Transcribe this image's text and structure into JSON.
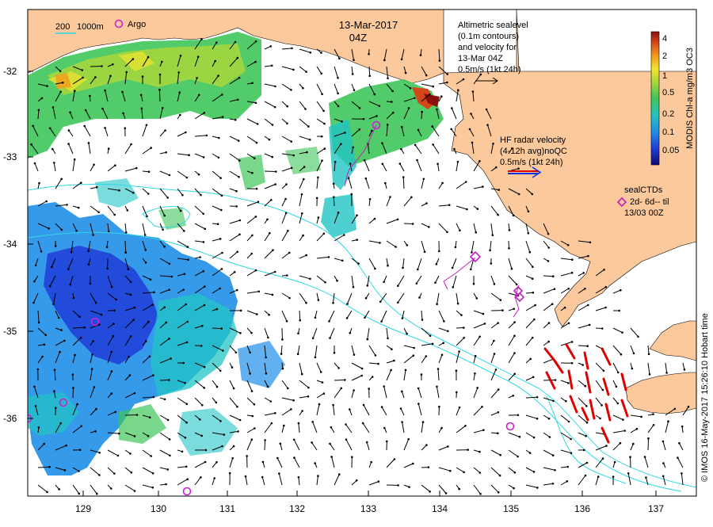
{
  "map": {
    "date_line1": "13-Mar-2017",
    "date_line2": "04Z",
    "scale": {
      "label_a": "200",
      "label_b": "1000m"
    },
    "argo_label": "Argo",
    "altimetric": {
      "lines": [
        "Altimetric sealevel",
        "(0.1m contours)",
        "and velocity for",
        "13-Mar 04Z",
        "0.5m/s (1kt 24h)"
      ]
    },
    "hf_radar": {
      "lines": [
        "HF radar velocity",
        "(4-12h avg)noQC",
        "0.5m/s (1kt 24h)"
      ]
    },
    "seal": {
      "lines": [
        "sealCTDs",
        "2d- 6d-- til",
        "13/03 00Z"
      ]
    },
    "colorbar": {
      "title": "MODIS Chl-a mg/m3 OC3",
      "ticks": [
        "4",
        "2",
        "1",
        "0.5",
        "0.2",
        "0.1",
        "0.05"
      ],
      "colors": [
        "#0c0c78",
        "#1f3cd8",
        "#1f8fe8",
        "#22c4c4",
        "#3fc65a",
        "#a8d63a",
        "#f2e42e",
        "#f29a1e",
        "#d2461a",
        "#8a1010"
      ]
    },
    "credit": "© IMOS 16-May-2017 15:26:10 Hobart time",
    "x_ticks": [
      "129",
      "130",
      "131",
      "132",
      "133",
      "134",
      "135",
      "136",
      "137"
    ],
    "y_ticks": [
      "-32",
      "-33",
      "-34",
      "-35",
      "-36"
    ],
    "colors": {
      "land": "#fbc99c",
      "argo": "#d020d0",
      "seal": "#c020c0",
      "hf": "#e00000",
      "contour": "#30d8e0"
    }
  }
}
